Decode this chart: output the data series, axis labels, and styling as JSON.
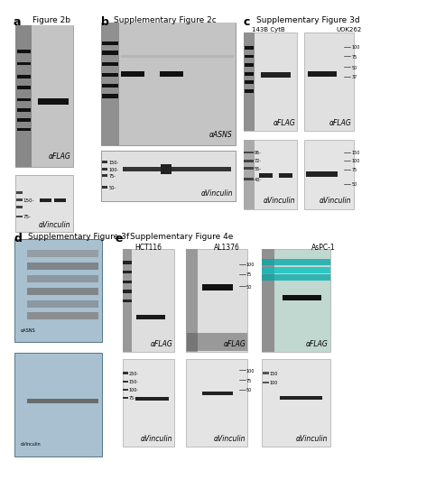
{
  "bg_white": "#ffffff",
  "panel_a_title": "Figure 2b",
  "panel_b_title": "Supplementary Figure 2c",
  "panel_c_title": "Supplementary Figure 3d",
  "panel_d_title": "Supplementary Figure 3f",
  "panel_e_title": "Supplementary Figure 4e",
  "label_FLAG": "αFLAG",
  "label_Vinculin": "αVinculin",
  "label_ASNS": "αASNS",
  "label_143B": "143B CytB",
  "label_UOK262": "UOK262",
  "label_HCT116": "HCT116",
  "label_AL1376": "AL1376",
  "label_AsPC1": "AsPC-1",
  "panel_labels": [
    "a",
    "b",
    "c",
    "d",
    "e"
  ]
}
